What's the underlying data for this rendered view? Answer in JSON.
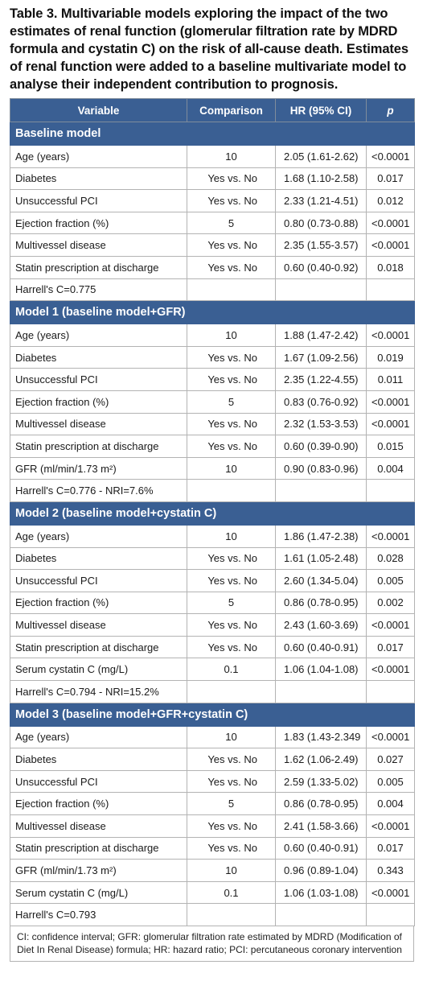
{
  "caption": "Table 3. Multivariable models exploring the impact of the two estimates of renal function (glomerular filtration rate by MDRD formula and cystatin C) on the risk of all-cause death. Estimates of renal function were added to a baseline multivariate model to analyse their independent contribution to prognosis.",
  "headers": [
    "Variable",
    "Comparison",
    "HR (95% CI)",
    "p"
  ],
  "sections": [
    {
      "title": "Baseline model",
      "rows": [
        [
          "Age (years)",
          "10",
          "2.05 (1.61-2.62)",
          "<0.0001"
        ],
        [
          "Diabetes",
          "Yes vs. No",
          "1.68 (1.10-2.58)",
          "0.017"
        ],
        [
          "Unsuccessful PCI",
          "Yes vs. No",
          "2.33 (1.21-4.51)",
          "0.012"
        ],
        [
          "Ejection fraction (%)",
          "5",
          "0.80 (0.73-0.88)",
          "<0.0001"
        ],
        [
          "Multivessel disease",
          "Yes vs. No",
          "2.35 (1.55-3.57)",
          "<0.0001"
        ],
        [
          "Statin prescription at discharge",
          "Yes vs. No",
          "0.60 (0.40-0.92)",
          "0.018"
        ],
        [
          "Harrell's C=0.775",
          "",
          "",
          ""
        ]
      ]
    },
    {
      "title": "Model 1 (baseline model+GFR)",
      "rows": [
        [
          "Age (years)",
          "10",
          "1.88 (1.47-2.42)",
          "<0.0001"
        ],
        [
          "Diabetes",
          "Yes vs. No",
          "1.67 (1.09-2.56)",
          "0.019"
        ],
        [
          "Unsuccessful PCI",
          "Yes vs. No",
          "2.35 (1.22-4.55)",
          "0.011"
        ],
        [
          "Ejection fraction (%)",
          "5",
          "0.83 (0.76-0.92)",
          "<0.0001"
        ],
        [
          "Multivessel disease",
          "Yes vs. No",
          "2.32 (1.53-3.53)",
          "<0.0001"
        ],
        [
          "Statin prescription at discharge",
          "Yes vs. No",
          "0.60 (0.39-0.90)",
          "0.015"
        ],
        [
          "GFR (ml/min/1.73 m²)",
          "10",
          "0.90 (0.83-0.96)",
          "0.004"
        ],
        [
          "Harrell's C=0.776 - NRI=7.6%",
          "",
          "",
          ""
        ]
      ]
    },
    {
      "title": "Model 2 (baseline model+cystatin C)",
      "rows": [
        [
          "Age (years)",
          "10",
          "1.86 (1.47-2.38)",
          "<0.0001"
        ],
        [
          "Diabetes",
          "Yes vs. No",
          "1.61 (1.05-2.48)",
          "0.028"
        ],
        [
          "Unsuccessful PCI",
          "Yes vs. No",
          "2.60 (1.34-5.04)",
          "0.005"
        ],
        [
          "Ejection fraction (%)",
          "5",
          "0.86 (0.78-0.95)",
          "0.002"
        ],
        [
          "Multivessel disease",
          "Yes vs. No",
          "2.43 (1.60-3.69)",
          "<0.0001"
        ],
        [
          "Statin prescription at discharge",
          "Yes vs. No",
          "0.60 (0.40-0.91)",
          "0.017"
        ],
        [
          "Serum cystatin C (mg/L)",
          "0.1",
          "1.06 (1.04-1.08)",
          "<0.0001"
        ],
        [
          "Harrell's C=0.794 - NRI=15.2%",
          "",
          "",
          ""
        ]
      ]
    },
    {
      "title": "Model 3 (baseline model+GFR+cystatin C)",
      "rows": [
        [
          "Age (years)",
          "10",
          "1.83 (1.43-2.349",
          "<0.0001"
        ],
        [
          "Diabetes",
          "Yes vs. No",
          "1.62 (1.06-2.49)",
          "0.027"
        ],
        [
          "Unsuccessful PCI",
          "Yes vs. No",
          "2.59 (1.33-5.02)",
          "0.005"
        ],
        [
          "Ejection fraction (%)",
          "5",
          "0.86 (0.78-0.95)",
          "0.004"
        ],
        [
          "Multivessel disease",
          "Yes vs. No",
          "2.41 (1.58-3.66)",
          "<0.0001"
        ],
        [
          "Statin prescription at discharge",
          "Yes vs. No",
          "0.60 (0.40-0.91)",
          "0.017"
        ],
        [
          "GFR (ml/min/1.73 m²)",
          "10",
          "0.96 (0.89-1.04)",
          "0.343"
        ],
        [
          "Serum cystatin C (mg/L)",
          "0.1",
          "1.06 (1.03-1.08)",
          "<0.0001"
        ],
        [
          "Harrell's C=0.793",
          "",
          "",
          ""
        ]
      ]
    }
  ],
  "footnote": "CI: confidence interval; GFR: glomerular filtration rate estimated by MDRD (Modification of Diet In Renal Disease) formula; HR: hazard ratio; PCI: percutaneous coronary intervention",
  "colors": {
    "header_bg": "#3a5f93",
    "header_text": "#ffffff",
    "border": "#b3b3b3"
  }
}
